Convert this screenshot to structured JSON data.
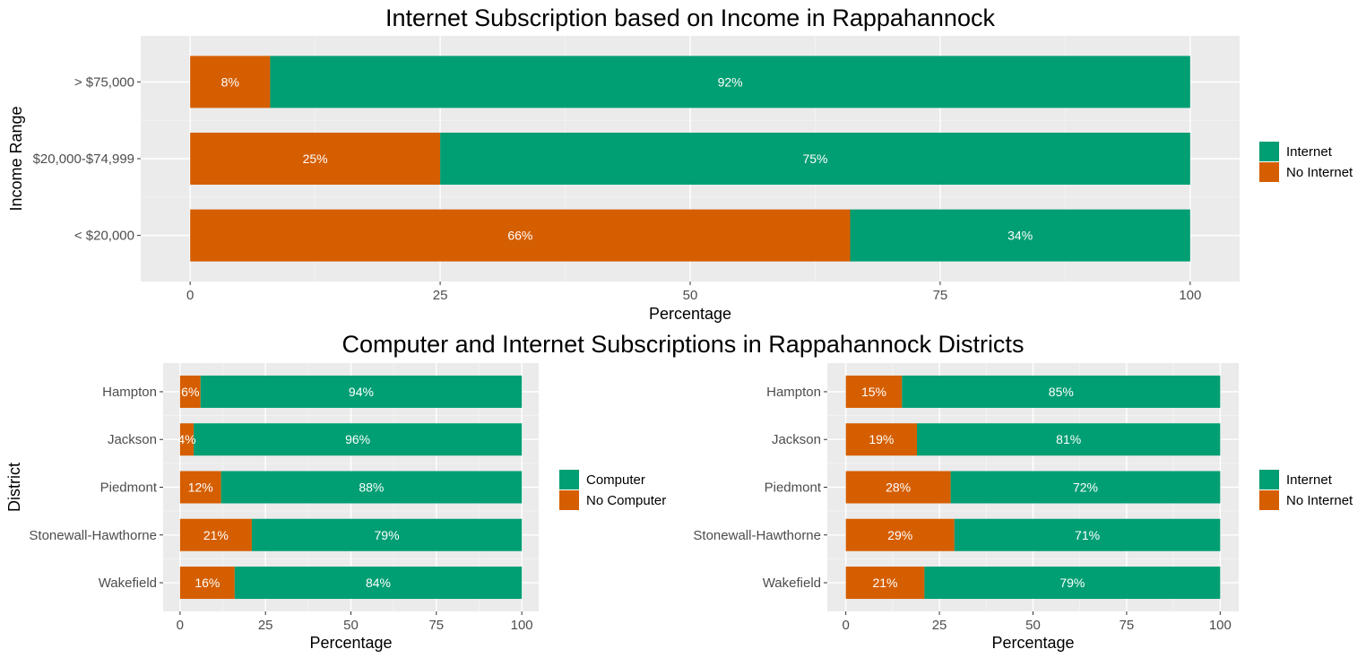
{
  "colors": {
    "primary": "#009e73",
    "secondary": "#d55e00"
  },
  "chart_data": [
    {
      "type": "bar",
      "orientation": "horizontal",
      "stacked": true,
      "title": "Internet Subscription based on Income in Rappahannock",
      "xlabel": "Percentage",
      "ylabel": "Income Range",
      "xlim": [
        0,
        100
      ],
      "xticks": [
        "0",
        "25",
        "50",
        "75",
        "100"
      ],
      "categories": [
        "> $75,000",
        "$20,000-$74,999",
        "< $20,000"
      ],
      "series": [
        {
          "name": "No Internet",
          "values": [
            8,
            25,
            66
          ],
          "labels": [
            "8%",
            "25%",
            "66%"
          ]
        },
        {
          "name": "Internet",
          "values": [
            92,
            75,
            34
          ],
          "labels": [
            "92%",
            "75%",
            "34%"
          ]
        }
      ],
      "legend": [
        "Internet",
        "No Internet"
      ]
    },
    {
      "type": "bar",
      "orientation": "horizontal",
      "stacked": true,
      "title": "Computer and Internet Subscriptions in Rappahannock Districts",
      "xlabel": "Percentage",
      "ylabel": "District",
      "xlim": [
        0,
        100
      ],
      "xticks": [
        "0",
        "25",
        "50",
        "75",
        "100"
      ],
      "categories": [
        "Hampton",
        "Jackson",
        "Piedmont",
        "Stonewall-Hawthorne",
        "Wakefield"
      ],
      "series": [
        {
          "name": "No Computer",
          "values": [
            6,
            4,
            12,
            21,
            16
          ],
          "labels": [
            "6%",
            "4%",
            "12%",
            "21%",
            "16%"
          ]
        },
        {
          "name": "Computer",
          "values": [
            94,
            96,
            88,
            79,
            84
          ],
          "labels": [
            "94%",
            "96%",
            "88%",
            "79%",
            "84%"
          ]
        }
      ],
      "legend": [
        "Computer",
        "No Computer"
      ]
    },
    {
      "type": "bar",
      "orientation": "horizontal",
      "stacked": true,
      "title": "",
      "xlabel": "Percentage",
      "ylabel": "",
      "xlim": [
        0,
        100
      ],
      "xticks": [
        "0",
        "25",
        "50",
        "75",
        "100"
      ],
      "categories": [
        "Hampton",
        "Jackson",
        "Piedmont",
        "Stonewall-Hawthorne",
        "Wakefield"
      ],
      "series": [
        {
          "name": "No Internet",
          "values": [
            15,
            19,
            28,
            29,
            21
          ],
          "labels": [
            "15%",
            "19%",
            "28%",
            "29%",
            "21%"
          ]
        },
        {
          "name": "Internet",
          "values": [
            85,
            81,
            72,
            71,
            79
          ],
          "labels": [
            "85%",
            "81%",
            "72%",
            "71%",
            "79%"
          ]
        }
      ],
      "legend": [
        "Internet",
        "No Internet"
      ]
    }
  ]
}
